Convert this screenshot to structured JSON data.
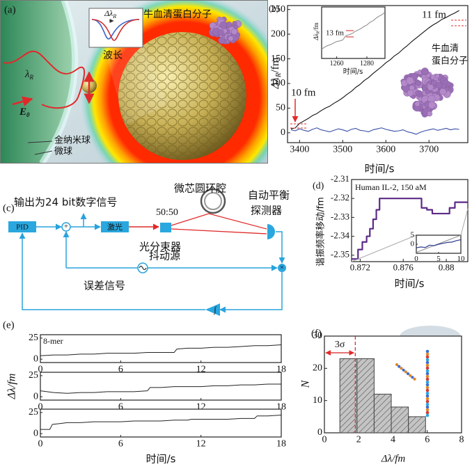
{
  "panel_a": {
    "label": "(a)",
    "inset_label": {
      "main": "Δλ",
      "sub": "R"
    },
    "inset_xlabel": "波长",
    "molecule": "牛血清蛋白分子",
    "wavelength": {
      "main": "λ",
      "sub": "R"
    },
    "field": {
      "main": "E",
      "sub": "0"
    },
    "nanosphere": "金纳米球",
    "microsphere": "微球"
  },
  "panel_c": {
    "label": "(c)",
    "output": "输出为24 bit数字信号",
    "resonator": "微芯圆环腔",
    "detector": [
      "自动平衡",
      "探测器"
    ],
    "pid": "PID",
    "laser": "激光",
    "ratio": "50:50",
    "splitter": "光分束器",
    "dither": "抖动源",
    "error": "误差信号",
    "adder": "+",
    "mixer": "×",
    "integrator": "∫"
  },
  "chart_data": [
    {
      "type": "line",
      "label": "(b)",
      "ylabel": {
        "main": "Δλ",
        "sub": "R",
        "unit": "/fm"
      },
      "xlabel": "时间/s",
      "annotations": [
        "10 fm",
        "11 fm"
      ],
      "molecule_label": [
        "牛血清",
        "蛋白分子"
      ],
      "x": [
        3380,
        3390,
        3400,
        3410,
        3420,
        3430,
        3440,
        3450,
        3460,
        3470,
        3480,
        3490,
        3500,
        3510,
        3520,
        3530,
        3540,
        3550,
        3560,
        3570,
        3580,
        3590,
        3600,
        3610,
        3620,
        3630,
        3640,
        3650,
        3660,
        3670,
        3680,
        3690,
        3700,
        3710,
        3720,
        3730,
        3740,
        3750,
        3760,
        3770
      ],
      "series": [
        {
          "color": "#111111",
          "values": [
            8,
            10,
            19,
            24,
            29,
            35,
            39,
            45,
            50,
            54,
            60,
            65,
            71,
            78,
            84,
            92,
            98,
            106,
            112,
            120,
            127,
            134,
            142,
            148,
            156,
            162,
            170,
            177,
            185,
            192,
            199,
            206,
            213,
            219,
            224,
            230,
            234,
            239,
            243,
            248
          ]
        },
        {
          "color": "#3a4fa8",
          "values": [
            6,
            4,
            8,
            5,
            3,
            7,
            10,
            6,
            4,
            2,
            5,
            8,
            6,
            3,
            7,
            9,
            5,
            4,
            2,
            6,
            8,
            10,
            7,
            5,
            3,
            4,
            6,
            2,
            0,
            -3,
            1,
            4,
            6,
            8,
            5,
            7,
            9,
            6,
            8,
            7
          ]
        }
      ],
      "xlim": [
        3372,
        3790
      ],
      "ylim": [
        -20,
        258
      ],
      "xticks": [
        3400,
        3500,
        3600,
        3700
      ],
      "yticks": [
        0,
        50,
        100,
        150,
        200,
        250
      ],
      "inset": {
        "ylabel": {
          "main": "Δλ",
          "sub": "R",
          "unit": "/fm"
        },
        "xlabel": "时间/s",
        "annotation": "13 fm",
        "x": [
          1250,
          1252,
          1254,
          1256,
          1258,
          1260,
          1262,
          1264,
          1266,
          1268,
          1270,
          1272,
          1274,
          1276,
          1278,
          1280,
          1282,
          1284,
          1286,
          1288,
          1290,
          1292
        ],
        "series": [
          {
            "color": "#888888",
            "values": [
              18,
              22,
              25,
              27,
              30,
              33,
              34,
              36,
              44,
              46,
              48,
              52,
              55,
              58,
              62,
              65,
              70,
              73,
              78,
              82,
              85,
              90
            ]
          }
        ],
        "xlim": [
          1250,
          1292
        ],
        "ylim": [
          0,
          100
        ],
        "xticks": [
          1260,
          1280
        ]
      }
    },
    {
      "type": "line",
      "label": "(d)",
      "annotation": "Human IL-2, 150 aM",
      "ylabel": "谐振频率移动/fm",
      "xlabel": "时间/s",
      "drawstyle": "steps-post",
      "x": [
        0.8712,
        0.8718,
        0.8722,
        0.8726,
        0.8729,
        0.8732,
        0.8735,
        0.8738,
        0.8777,
        0.8782,
        0.8787,
        0.8803,
        0.8808,
        0.882
      ],
      "series": [
        {
          "color": "#5b2a86",
          "values": [
            -2.352,
            -2.347,
            -2.343,
            -2.34,
            -2.336,
            -2.331,
            -2.326,
            -2.32,
            -2.325,
            -2.326,
            -2.328,
            -2.325,
            -2.322,
            -2.322
          ]
        }
      ],
      "xlim": [
        0.8712,
        0.882
      ],
      "ylim": [
        -2.3534,
        -2.31
      ],
      "xticks": [
        0.872,
        0.876,
        0.88
      ],
      "yticks": [
        -2.35,
        -2.34,
        -2.33,
        -2.32,
        -2.31
      ],
      "inset": {
        "x": [
          0,
          1,
          2,
          3,
          4,
          5,
          6,
          7,
          8,
          9,
          10
        ],
        "series": [
          {
            "color": "#999999",
            "x": [
              0,
              10
            ],
            "values": [
              -4.5,
              5
            ]
          },
          {
            "color": "#2b3a8f",
            "values": [
              -2,
              -1.5,
              -1.8,
              -0.5,
              -0.8,
              0,
              0.5,
              1,
              1.2,
              2,
              2.5
            ]
          }
        ],
        "xlim": [
          0,
          10
        ],
        "ylim": [
          -5,
          5
        ],
        "xticks": [
          0,
          5,
          10
        ],
        "yticks": [
          0,
          5
        ]
      }
    },
    {
      "type": "line",
      "label": "(e)",
      "ylabel": "Δλ/fm",
      "xlabel": "时间/s",
      "annotation": "8-mer",
      "xlim": [
        0,
        18
      ],
      "ylim": [
        -4,
        29
      ],
      "xticks": [
        0,
        6,
        12,
        18
      ],
      "yticks": [
        0,
        25
      ],
      "subplots": [
        {
          "x": [
            0,
            1,
            2,
            3,
            4,
            5,
            6,
            7,
            8,
            9,
            10,
            10.2,
            11,
            12,
            13,
            14,
            15,
            16,
            17,
            18
          ],
          "series": [
            {
              "color": "#222222",
              "values": [
                4,
                5,
                5,
                6,
                6,
                7,
                7,
                7,
                8,
                8,
                8,
                12,
                13,
                13,
                14,
                14,
                15,
                16,
                16,
                17
              ]
            }
          ]
        },
        {
          "x": [
            0,
            1,
            2,
            3,
            4,
            5,
            6,
            7,
            8,
            8.2,
            9,
            10,
            11,
            12,
            13,
            14,
            15,
            16,
            17,
            18
          ],
          "series": [
            {
              "color": "#222222",
              "values": [
                7,
                5,
                4,
                5,
                5,
                6,
                6,
                6,
                7,
                11,
                11,
                12,
                12,
                12,
                13,
                13,
                14,
                14,
                15,
                15
              ]
            }
          ]
        },
        {
          "x": [
            0,
            0.7,
            0.9,
            1.5,
            2,
            3,
            4,
            5,
            6,
            7,
            8,
            9,
            10,
            11,
            11.3,
            12,
            13,
            14,
            15,
            16,
            16.2,
            17,
            18
          ],
          "series": [
            {
              "color": "#222222",
              "values": [
                5,
                5,
                11,
                12,
                13,
                13,
                14,
                14,
                14,
                15,
                15,
                15,
                16,
                16,
                17,
                17,
                17,
                17,
                18,
                18,
                21,
                21,
                22
              ]
            }
          ]
        }
      ]
    },
    {
      "type": "histogram",
      "label": "(f)",
      "xlabel": "Δλ/fm",
      "ylabel": "N",
      "bins": [
        0.9,
        1.9,
        2.9,
        3.9,
        4.9,
        5.9
      ],
      "values": [
        23,
        23,
        12,
        8,
        5
      ],
      "color": "#c4c4c4",
      "hatch": true,
      "xlim": [
        0,
        8
      ],
      "ylim": [
        0,
        30
      ],
      "xticks": [
        0,
        2,
        4,
        6,
        8
      ],
      "yticks": [
        0,
        10,
        20,
        30
      ],
      "threshold": {
        "value": 1.8,
        "label": "3σ",
        "color": "#d22222"
      }
    }
  ]
}
